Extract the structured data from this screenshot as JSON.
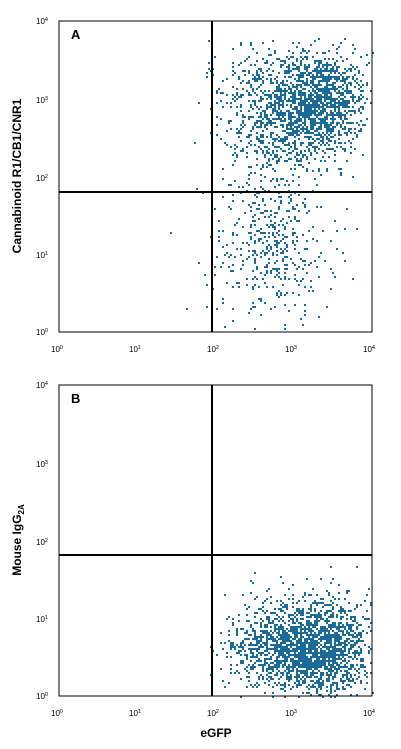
{
  "chart_data": [
    {
      "type": "scatter",
      "panel_label": "A",
      "ylabel": "Cannabinoid R1/CB1/CNR1",
      "xlabel": "",
      "x_scale": "log",
      "y_scale": "log",
      "xlim": [
        1,
        10000
      ],
      "ylim": [
        1,
        10000
      ],
      "x_ticks": [
        {
          "base": "10",
          "exp": "0"
        },
        {
          "base": "10",
          "exp": "1"
        },
        {
          "base": "10",
          "exp": "2"
        },
        {
          "base": "10",
          "exp": "3"
        },
        {
          "base": "10",
          "exp": "4"
        }
      ],
      "y_ticks": [
        {
          "base": "10",
          "exp": "0"
        },
        {
          "base": "10",
          "exp": "1"
        },
        {
          "base": "10",
          "exp": "2"
        },
        {
          "base": "10",
          "exp": "3"
        },
        {
          "base": "10",
          "exp": "4"
        }
      ],
      "quadrant_gates": {
        "x": 93,
        "y": 63
      },
      "point_color": "#1a6b9a",
      "populations": [
        {
          "name": "",
          "center": [
            2000,
            900
          ],
          "spread_decades": [
            0.32,
            0.32
          ],
          "count": 1300
        },
        {
          "name": "",
          "center": [
            600,
            350
          ],
          "spread_decades": [
            0.35,
            0.38
          ],
          "count": 450
        },
        {
          "name": "",
          "center": [
            500,
            1600
          ],
          "spread_decades": [
            0.4,
            0.3
          ],
          "count": 250
        },
        {
          "name": "",
          "center": [
            500,
            12
          ],
          "spread_decades": [
            0.4,
            0.45
          ],
          "count": 420
        }
      ]
    },
    {
      "type": "scatter",
      "panel_label": "B",
      "ylabel": "Mouse IgG",
      "ylabel_subscript": "2A",
      "xlabel": "eGFP",
      "x_scale": "log",
      "y_scale": "log",
      "xlim": [
        1,
        10000
      ],
      "ylim": [
        1,
        10000
      ],
      "x_ticks": [
        {
          "base": "10",
          "exp": "0"
        },
        {
          "base": "10",
          "exp": "1"
        },
        {
          "base": "10",
          "exp": "2"
        },
        {
          "base": "10",
          "exp": "3"
        },
        {
          "base": "10",
          "exp": "4"
        }
      ],
      "y_ticks": [
        {
          "base": "10",
          "exp": "0"
        },
        {
          "base": "10",
          "exp": "1"
        },
        {
          "base": "10",
          "exp": "2"
        },
        {
          "base": "10",
          "exp": "3"
        },
        {
          "base": "10",
          "exp": "4"
        }
      ],
      "quadrant_gates": {
        "x": 93,
        "y": 63
      },
      "point_color": "#1a6b9a",
      "populations": [
        {
          "name": "",
          "center": [
            1800,
            4
          ],
          "spread_decades": [
            0.33,
            0.3
          ],
          "count": 1500
        },
        {
          "name": "",
          "center": [
            500,
            5
          ],
          "spread_decades": [
            0.3,
            0.3
          ],
          "count": 550
        },
        {
          "name": "",
          "center": [
            4500,
            6
          ],
          "spread_decades": [
            0.15,
            0.3
          ],
          "count": 120
        }
      ]
    }
  ]
}
